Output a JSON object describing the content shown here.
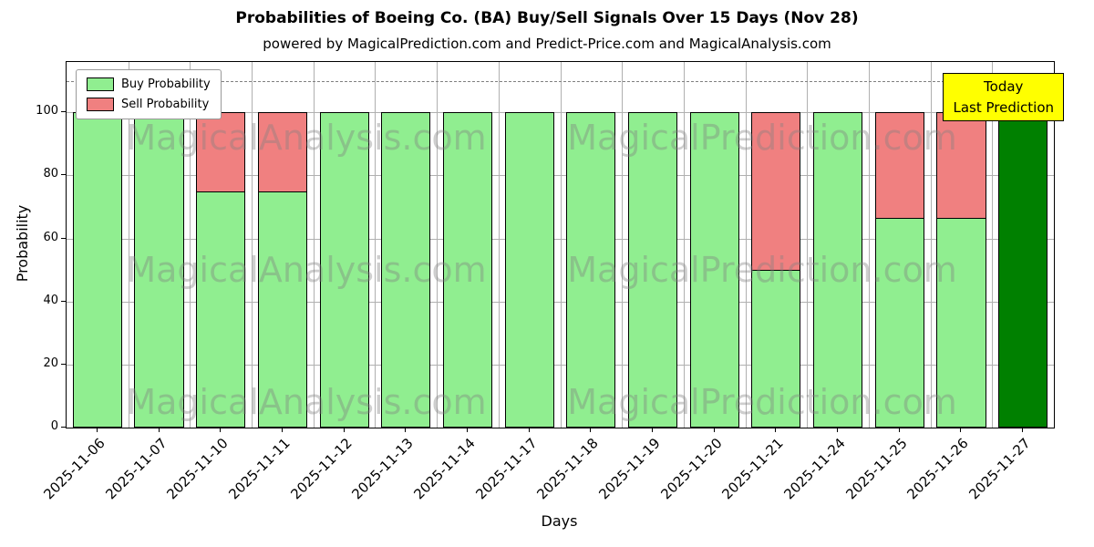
{
  "subtitle": "powered by MagicalPrediction.com and Predict-Price.com and MagicalAnalysis.com",
  "legend": {
    "buy_label": "Buy Probability",
    "sell_label": "Sell Probability"
  },
  "annotation": {
    "line1": "Today",
    "line2": "Last Prediction"
  },
  "watermarks": [
    "MagicalAnalysis.com",
    "MagicalPrediction.com"
  ],
  "colors": {
    "buy": "#90ee90",
    "sell": "#f08080",
    "today": "#008000",
    "annotation_bg": "#ffff00",
    "grid": "#b0b0b0",
    "dashed": "#808080"
  },
  "chart_data": {
    "type": "bar",
    "stacked": true,
    "title": "Probabilities of Boeing Co. (BA) Buy/Sell Signals Over 15 Days (Nov 28)",
    "xlabel": "Days",
    "ylabel": "Probability",
    "categories": [
      "2025-11-06",
      "2025-11-07",
      "2025-11-10",
      "2025-11-11",
      "2025-11-12",
      "2025-11-13",
      "2025-11-14",
      "2025-11-17",
      "2025-11-18",
      "2025-11-19",
      "2025-11-20",
      "2025-11-21",
      "2025-11-24",
      "2025-11-25",
      "2025-11-26",
      "2025-11-27"
    ],
    "series": [
      {
        "name": "Buy Probability",
        "values": [
          100,
          100,
          75,
          75,
          100,
          100,
          100,
          100,
          100,
          100,
          100,
          50,
          100,
          66.5,
          66.5,
          100
        ]
      },
      {
        "name": "Sell Probability",
        "values": [
          0,
          0,
          25,
          25,
          0,
          0,
          0,
          0,
          0,
          0,
          0,
          50,
          0,
          33.5,
          33.5,
          0
        ]
      }
    ],
    "today_index": 15,
    "yticks": [
      0,
      20,
      40,
      60,
      80,
      100
    ],
    "ylim": [
      0,
      116
    ],
    "dashed_line_y": 110,
    "grid": true,
    "legend_position": "upper left"
  }
}
